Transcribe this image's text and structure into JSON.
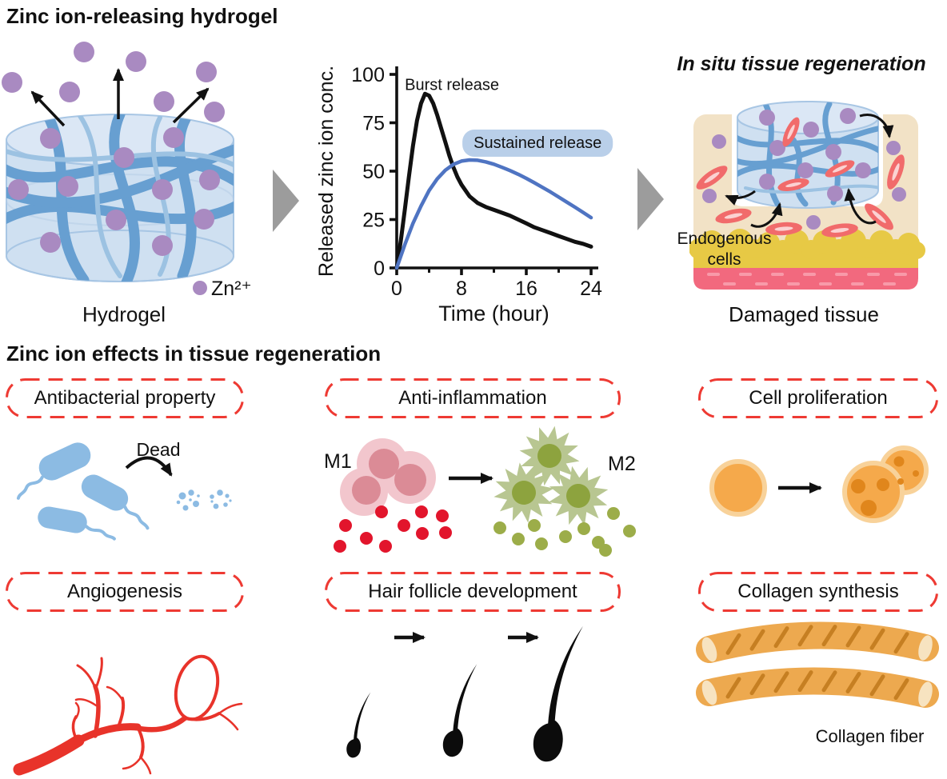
{
  "palette": {
    "dashed_red": "#ee3a33",
    "gel_fill": "#cfe0f1",
    "gel_top": "#dbe7f5",
    "gel_stroke": "#a8c6e4",
    "gel_fiber_blue": "#679fd1",
    "ion_purple": "#a98ac1",
    "flow_arrow_gray": "#9c9c9c",
    "chart_black": "#111111",
    "chart_blue": "#4f74c2",
    "sustained_pill_bg": "#b9cfe9",
    "bacteria_blue": "#8cbbe3",
    "m1_outer_pink": "#f2c6cd",
    "m1_nucleus": "#db8b96",
    "m1_dots_red": "#e2152c",
    "m2_outer_green": "#b8c691",
    "m2_nucleus": "#8da33e",
    "m2_dots_olive": "#9cad49",
    "cell_orange": "#f5a94b",
    "cell_ring": "#f8d29a",
    "cell_spot": "#e0861c",
    "vessel_red": "#e8332a",
    "tissue_tan": "#f2e2c6",
    "fat_yellow": "#e7c945",
    "muscle_pink": "#f2697e",
    "spindle_red": "#f16b6b",
    "collagen_orange": "#eda94f",
    "collagen_ridge": "#c67f22",
    "collagen_end": "#f7e3c0"
  },
  "top": {
    "title": "Zinc ion-releasing hydrogel",
    "hydrogel_caption": "Hydrogel",
    "ion_legend": "Zn²⁺",
    "regen_title": "In situ tissue regeneration",
    "endogenous_line1": "Endogenous",
    "endogenous_line2": "cells",
    "tissue_caption": "Damaged tissue"
  },
  "chart_data": {
    "type": "line",
    "title": "",
    "xlabel": "Time (hour)",
    "ylabel": "Released zinc ion conc.",
    "xlim": [
      0,
      24
    ],
    "ylim": [
      0,
      100
    ],
    "xticks": [
      0,
      8,
      16,
      24
    ],
    "xticks_minor": [
      4,
      12,
      20
    ],
    "yticks": [
      0,
      25,
      50,
      75,
      100
    ],
    "grid": false,
    "legend_position": "none",
    "series": [
      {
        "name": "Burst release",
        "color": "#111111",
        "width": 5,
        "x": [
          0,
          0.5,
          1,
          1.5,
          2,
          2.5,
          3,
          3.5,
          4,
          4.5,
          5,
          5.5,
          6,
          6.5,
          7,
          7.5,
          8,
          9,
          10,
          11,
          12,
          13,
          14,
          15,
          16,
          17,
          18,
          19,
          20,
          21,
          22,
          23,
          24
        ],
        "y": [
          0,
          14,
          30,
          47,
          63,
          76,
          85,
          90,
          89,
          85,
          79,
          72,
          65,
          58,
          52,
          47,
          43,
          37,
          33.5,
          31.5,
          30,
          28.5,
          27,
          25,
          23,
          21,
          19.5,
          18,
          16.5,
          15,
          13.5,
          12.5,
          11
        ]
      },
      {
        "name": "Sustained release",
        "color": "#4f74c2",
        "width": 4.5,
        "x": [
          0,
          1,
          2,
          3,
          4,
          5,
          6,
          7,
          8,
          9,
          10,
          11,
          12,
          13,
          14,
          15,
          16,
          17,
          18,
          19,
          20,
          21,
          22,
          23,
          24
        ],
        "y": [
          0,
          12,
          23,
          32,
          40,
          46,
          50.5,
          53.5,
          55.2,
          55.8,
          55.6,
          54.8,
          53.6,
          52,
          50.3,
          48.4,
          46.3,
          44,
          41.6,
          39.2,
          36.6,
          34,
          31.4,
          28.7,
          26
        ]
      }
    ],
    "annotations": [
      {
        "text": "Burst release",
        "x": 1.0,
        "y": 92,
        "anchor": "start",
        "style": "plain"
      },
      {
        "text": "Sustained release",
        "x": 17.4,
        "y": 62,
        "anchor": "middle",
        "style": "pill",
        "bg": "#b9cfe9"
      }
    ]
  },
  "bottom": {
    "title": "Zinc ion effects in tissue regeneration",
    "antibacterial": {
      "label": "Antibacterial property",
      "dead_label": "Dead"
    },
    "anti_inflammation": {
      "label": "Anti-inflammation",
      "m1": "M1",
      "m2": "M2"
    },
    "cell_proliferation": {
      "label": "Cell proliferation"
    },
    "angiogenesis": {
      "label": "Angiogenesis"
    },
    "hair": {
      "label": "Hair follicle development"
    },
    "collagen": {
      "label": "Collagen synthesis",
      "caption": "Collagen fiber"
    }
  }
}
